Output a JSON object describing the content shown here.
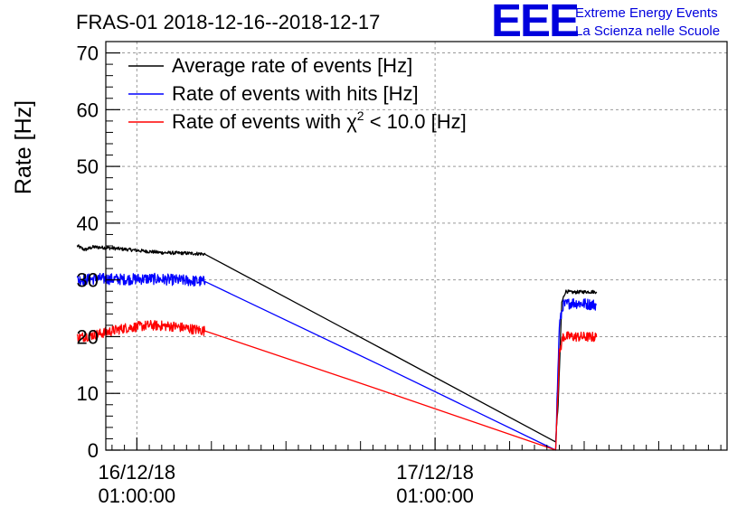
{
  "header": {
    "title": "FRAS-01 2018-12-16--2018-12-17",
    "logo_letters": "EEE",
    "logo_line1": "Extreme Energy Events",
    "logo_line2": "La Scienza nelle Scuole"
  },
  "chart_data": {
    "type": "line",
    "title": "FRAS-01 2018-12-16--2018-12-17",
    "xlabel": "",
    "ylabel": "Rate [Hz]",
    "xunit": "hours since 2018-12-16 00:00",
    "xlim": [
      -1.5,
      48.5
    ],
    "ylim": [
      0,
      72
    ],
    "grid": true,
    "yticks": [
      0,
      10,
      20,
      30,
      40,
      50,
      60,
      70
    ],
    "xticks": [
      {
        "x": 1.0,
        "line1": "16/12/18",
        "line2": "01:00:00"
      },
      {
        "x": 25.0,
        "line1": "17/12/18",
        "line2": "01:00:00"
      }
    ],
    "legend_position": "top-left",
    "series": [
      {
        "name": "Average rate of events [Hz]",
        "legend_label": "Average rate of events [Hz]",
        "color": "#000000",
        "noise": 0.3,
        "points": [
          [
            -3.8,
            36.0
          ],
          [
            -3.2,
            35.3
          ],
          [
            -2.5,
            35.8
          ],
          [
            -1.0,
            35.6
          ],
          [
            1.0,
            35.2
          ],
          [
            3.0,
            34.8
          ],
          [
            5.0,
            34.7
          ],
          [
            6.2,
            34.6
          ],
          [
            6.5,
            34.5
          ],
          [
            34.7,
            1.5
          ],
          [
            34.9,
            8.0
          ],
          [
            35.2,
            26.0
          ],
          [
            35.5,
            28.0
          ],
          [
            36.0,
            27.8
          ],
          [
            37.0,
            27.9
          ],
          [
            38.0,
            27.9
          ]
        ]
      },
      {
        "name": "Rate of events with hits [Hz]",
        "legend_label": "Rate of events with hits [Hz]",
        "color": "#0000ff",
        "noise": 1.0,
        "points": [
          [
            -3.8,
            30.0
          ],
          [
            -2.0,
            30.2
          ],
          [
            0.0,
            30.1
          ],
          [
            2.0,
            30.2
          ],
          [
            4.0,
            30.0
          ],
          [
            6.5,
            29.7
          ],
          [
            34.7,
            0.2
          ],
          [
            35.0,
            22.0
          ],
          [
            35.3,
            25.5
          ],
          [
            36.0,
            26.0
          ],
          [
            38.0,
            25.6
          ]
        ]
      },
      {
        "name": "Rate of events with chi2 < 10.0 [Hz]",
        "legend_prefix": "Rate of events with ",
        "legend_symbol": "χ",
        "legend_sup": "2",
        "legend_suffix": " < 10.0 [Hz]",
        "color": "#ff0000",
        "noise": 0.9,
        "points": [
          [
            -3.8,
            19.8
          ],
          [
            -2.0,
            20.5
          ],
          [
            0.0,
            21.5
          ],
          [
            2.0,
            22.0
          ],
          [
            4.0,
            21.8
          ],
          [
            6.5,
            21.0
          ],
          [
            34.7,
            0.2
          ],
          [
            35.0,
            17.0
          ],
          [
            35.3,
            20.0
          ],
          [
            36.0,
            20.0
          ],
          [
            38.0,
            19.9
          ]
        ]
      }
    ]
  }
}
